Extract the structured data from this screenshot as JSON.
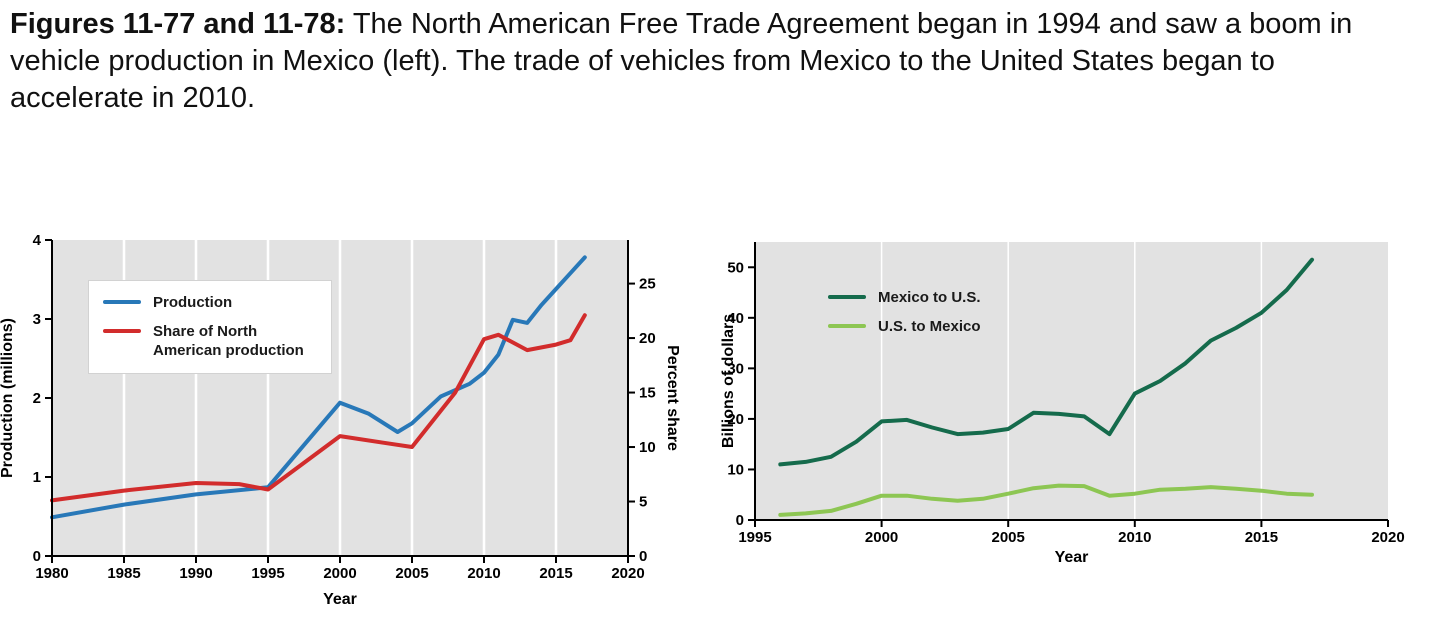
{
  "caption": {
    "bold": "Figures 11-77 and 11-78:",
    "text": " The North American Free Trade Agreement began in 1994 and saw a boom in vehicle production in Mexico (left). The trade of vehicles from Mexico to the United States began to accelerate in 2010."
  },
  "colors": {
    "plot_background": "#e2e2e2",
    "gridline": "#ffffff",
    "axis": "#000000"
  },
  "chart_data": [
    {
      "name": "mexico-vehicle-production",
      "type": "line",
      "title": "",
      "xlabel": "Year",
      "ylabel_left": "Production (millions)",
      "ylabel_right": "Percent share",
      "xlim": [
        1980,
        2020
      ],
      "xticks": [
        1980,
        1985,
        1990,
        1995,
        2000,
        2005,
        2010,
        2015,
        2020
      ],
      "ylim_left": [
        0,
        4
      ],
      "yticks_left": [
        0,
        1,
        2,
        3,
        4
      ],
      "ylim_right": [
        0,
        29
      ],
      "yticks_right": [
        0,
        5,
        10,
        15,
        20,
        25
      ],
      "grid": "vertical",
      "legend_position": "upper-left",
      "series": [
        {
          "name": "Production",
          "axis": "left",
          "color": "#2878b8",
          "x": [
            1980,
            1985,
            1990,
            1995,
            2000,
            2002,
            2004,
            2005,
            2007,
            2009,
            2010,
            2011,
            2012,
            2013,
            2014,
            2015,
            2016,
            2017
          ],
          "y": [
            0.49,
            0.65,
            0.78,
            0.87,
            1.94,
            1.8,
            1.57,
            1.68,
            2.02,
            2.18,
            2.32,
            2.55,
            2.99,
            2.95,
            3.18,
            3.38,
            3.58,
            3.78
          ]
        },
        {
          "name": "Share of North American production",
          "axis": "right",
          "color": "#d22c2c",
          "x": [
            1980,
            1985,
            1990,
            1993,
            1995,
            2000,
            2003,
            2005,
            2008,
            2010,
            2011,
            2013,
            2015,
            2016,
            2017
          ],
          "y": [
            5.1,
            6.0,
            6.7,
            6.6,
            6.1,
            11.0,
            10.4,
            10.0,
            15.0,
            19.9,
            20.3,
            18.9,
            19.4,
            19.8,
            22.1
          ]
        }
      ]
    },
    {
      "name": "us-mexico-vehicle-trade",
      "type": "line",
      "title": "",
      "xlabel": "Year",
      "ylabel_left": "Billions of dollars",
      "xlim": [
        1995,
        2020
      ],
      "xticks": [
        1995,
        2000,
        2005,
        2010,
        2015,
        2020
      ],
      "ylim_left": [
        0,
        55
      ],
      "yticks_left": [
        0,
        10,
        20,
        30,
        40,
        50
      ],
      "grid": "vertical",
      "legend_position": "upper-left",
      "series": [
        {
          "name": "Mexico to U.S.",
          "axis": "left",
          "color": "#156b4c",
          "x": [
            1996,
            1997,
            1998,
            1999,
            2000,
            2001,
            2002,
            2003,
            2004,
            2005,
            2006,
            2007,
            2008,
            2009,
            2010,
            2011,
            2012,
            2013,
            2014,
            2015,
            2016,
            2017
          ],
          "y": [
            11,
            11.5,
            12.5,
            15.5,
            19.5,
            19.8,
            18.3,
            17.0,
            17.3,
            18.0,
            21.2,
            21.0,
            20.5,
            17.0,
            25.0,
            27.5,
            31.0,
            35.5,
            38.0,
            41.0,
            45.5,
            51.5
          ]
        },
        {
          "name": "U.S. to Mexico",
          "axis": "left",
          "color": "#8dc653",
          "x": [
            1996,
            1997,
            1998,
            1999,
            2000,
            2001,
            2002,
            2003,
            2004,
            2005,
            2006,
            2007,
            2008,
            2009,
            2010,
            2011,
            2012,
            2013,
            2014,
            2015,
            2016,
            2017
          ],
          "y": [
            1.0,
            1.3,
            1.8,
            3.2,
            4.8,
            4.8,
            4.2,
            3.8,
            4.2,
            5.2,
            6.3,
            6.8,
            6.7,
            4.8,
            5.2,
            6.0,
            6.2,
            6.5,
            6.2,
            5.8,
            5.2,
            5.0
          ]
        }
      ]
    }
  ]
}
